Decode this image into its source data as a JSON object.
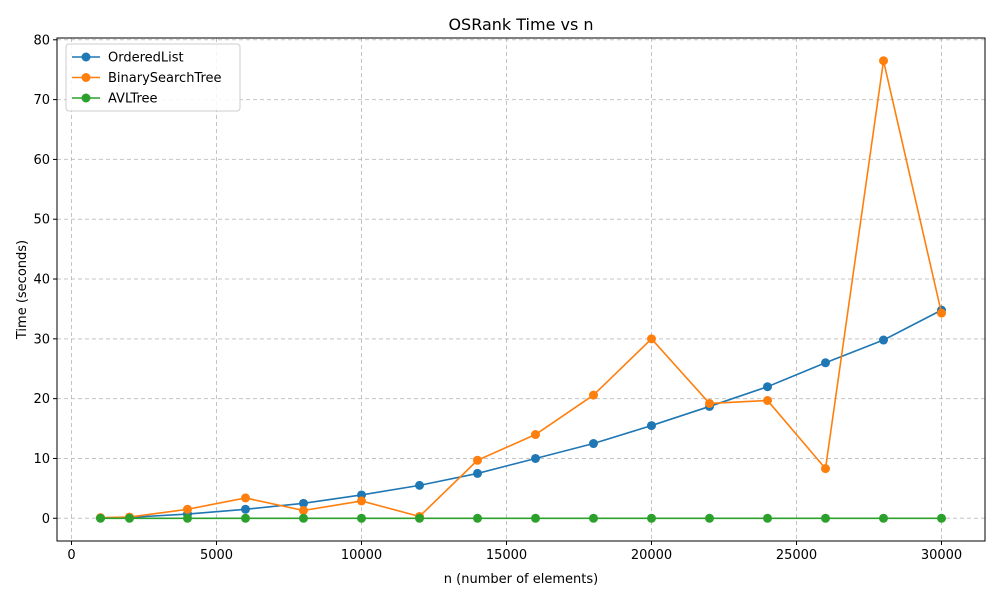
{
  "chart_data": {
    "type": "line",
    "title": "OSRank Time vs n",
    "xlabel": "n (number of elements)",
    "ylabel": "Time (seconds)",
    "xlim": [
      -500,
      31500
    ],
    "ylim": [
      -3.8,
      80.3
    ],
    "xticks": [
      0,
      5000,
      10000,
      15000,
      20000,
      25000,
      30000
    ],
    "xtick_labels": [
      "0",
      "5000",
      "10000",
      "15000",
      "20000",
      "25000",
      "30000"
    ],
    "yticks": [
      0,
      10,
      20,
      30,
      40,
      50,
      60,
      70,
      80
    ],
    "ytick_labels": [
      "0",
      "10",
      "20",
      "30",
      "40",
      "50",
      "60",
      "70",
      "80"
    ],
    "grid": true,
    "legend_position": "upper-left",
    "x": [
      1000,
      2000,
      4000,
      6000,
      8000,
      10000,
      12000,
      14000,
      16000,
      18000,
      20000,
      22000,
      24000,
      26000,
      28000,
      30000
    ],
    "series": [
      {
        "name": "OrderedList",
        "color": "#1f77b4",
        "values": [
          0.05,
          0.15,
          0.7,
          1.5,
          2.5,
          3.9,
          5.5,
          7.5,
          10.0,
          12.5,
          15.5,
          18.7,
          22.0,
          26.0,
          29.8,
          34.8
        ]
      },
      {
        "name": "BinarySearchTree",
        "color": "#ff7f0e",
        "values": [
          0.1,
          0.2,
          1.5,
          3.4,
          1.3,
          2.9,
          0.3,
          9.7,
          14.0,
          20.6,
          30.0,
          19.2,
          19.7,
          8.3,
          76.5,
          34.3
        ]
      },
      {
        "name": "AVLTree",
        "color": "#2ca02c",
        "values": [
          0.0,
          0.0,
          0.0,
          0.0,
          0.0,
          0.0,
          0.0,
          0.0,
          0.0,
          0.0,
          0.0,
          0.0,
          0.0,
          0.0,
          0.0,
          0.0
        ]
      }
    ]
  }
}
